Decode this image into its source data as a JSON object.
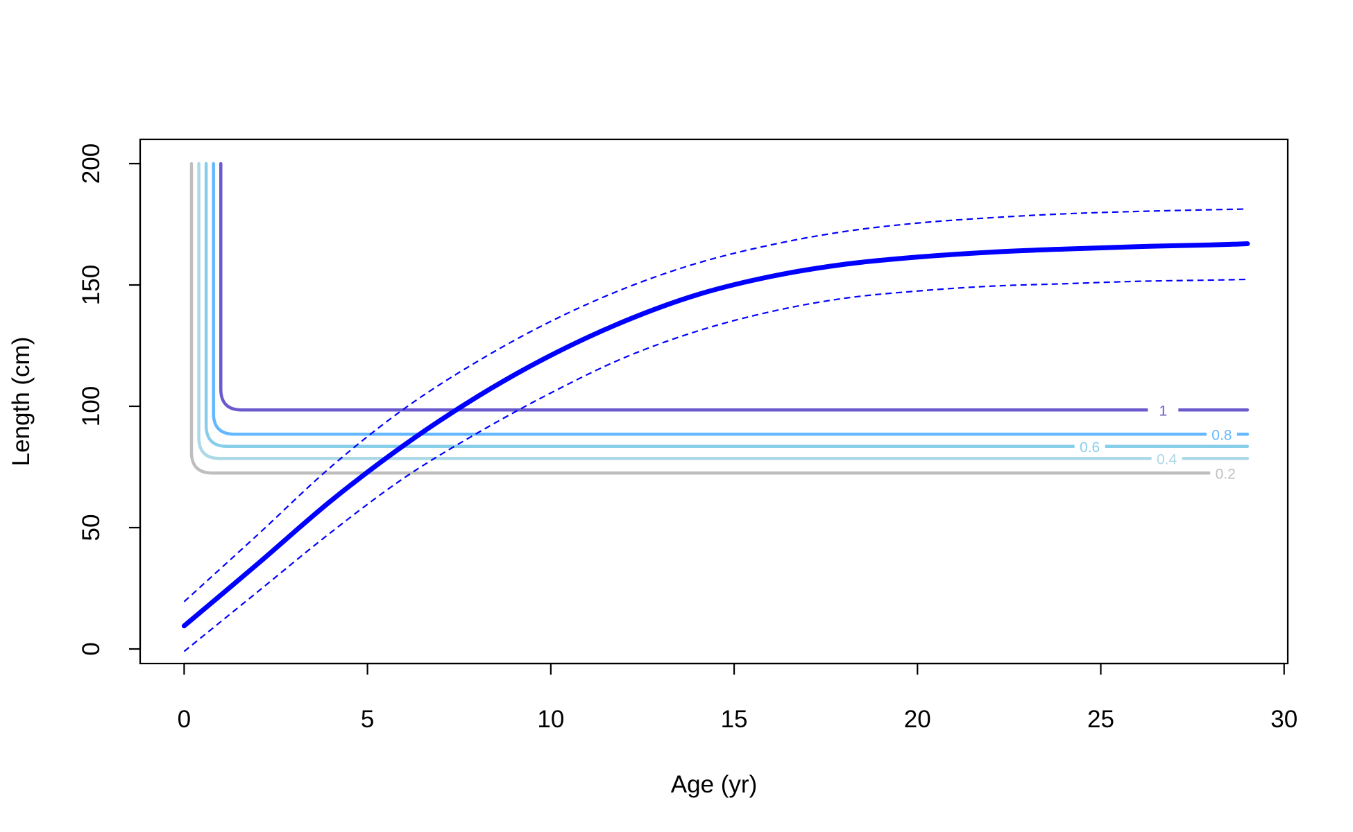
{
  "chart_data": {
    "type": "line",
    "title": "",
    "xlabel": "Age (yr)",
    "ylabel": "Length (cm)",
    "xlim": [
      -1.2,
      30.1
    ],
    "ylim": [
      -6,
      210
    ],
    "x_ticks": [
      0,
      5,
      10,
      15,
      20,
      25,
      30
    ],
    "x_tick_labels": [
      "0",
      "5",
      "10",
      "15",
      "20",
      "25",
      "30"
    ],
    "y_ticks": [
      0,
      50,
      100,
      150,
      200
    ],
    "y_tick_labels": [
      "0",
      "50",
      "100",
      "150",
      "200"
    ],
    "grid": false,
    "growth_curve": {
      "color": "#0000FF",
      "x": [
        0,
        2,
        4,
        6,
        8,
        10,
        12,
        14,
        16,
        18,
        20,
        22,
        24,
        26,
        28,
        29
      ],
      "mean": [
        9.5,
        35,
        61,
        84,
        104,
        121,
        135,
        146,
        153.5,
        158.5,
        161.5,
        163.5,
        164.8,
        165.8,
        166.5,
        167
      ],
      "upper": [
        19.5,
        47,
        75,
        99,
        118.5,
        135,
        148.5,
        159,
        166.5,
        172,
        175.5,
        177.7,
        179.3,
        180.3,
        181,
        181.3
      ],
      "lower": [
        -1,
        23.5,
        48,
        70.5,
        89,
        105.5,
        120,
        131,
        139,
        144.5,
        147.5,
        149.5,
        150.5,
        151.5,
        152,
        152.3
      ]
    },
    "contours": [
      {
        "label": "1",
        "color": "#6A5ACD",
        "corner_x": 1.0,
        "level_y": 98.5,
        "end_x": 29,
        "label_x": 26.7
      },
      {
        "label": "0.8",
        "color": "#63B8FF",
        "corner_x": 0.8,
        "level_y": 88.5,
        "end_x": 29,
        "label_x": 28.3
      },
      {
        "label": "0.6",
        "color": "#87CEEB",
        "corner_x": 0.6,
        "level_y": 83.5,
        "end_x": 29,
        "label_x": 24.7
      },
      {
        "label": "0.4",
        "color": "#ADD8E6",
        "corner_x": 0.4,
        "level_y": 78.5,
        "end_x": 29,
        "label_x": 26.8
      },
      {
        "label": "0.2",
        "color": "#BEBEBE",
        "corner_x": 0.2,
        "level_y": 72.5,
        "end_x": 28,
        "label_x": 28.4
      }
    ]
  }
}
